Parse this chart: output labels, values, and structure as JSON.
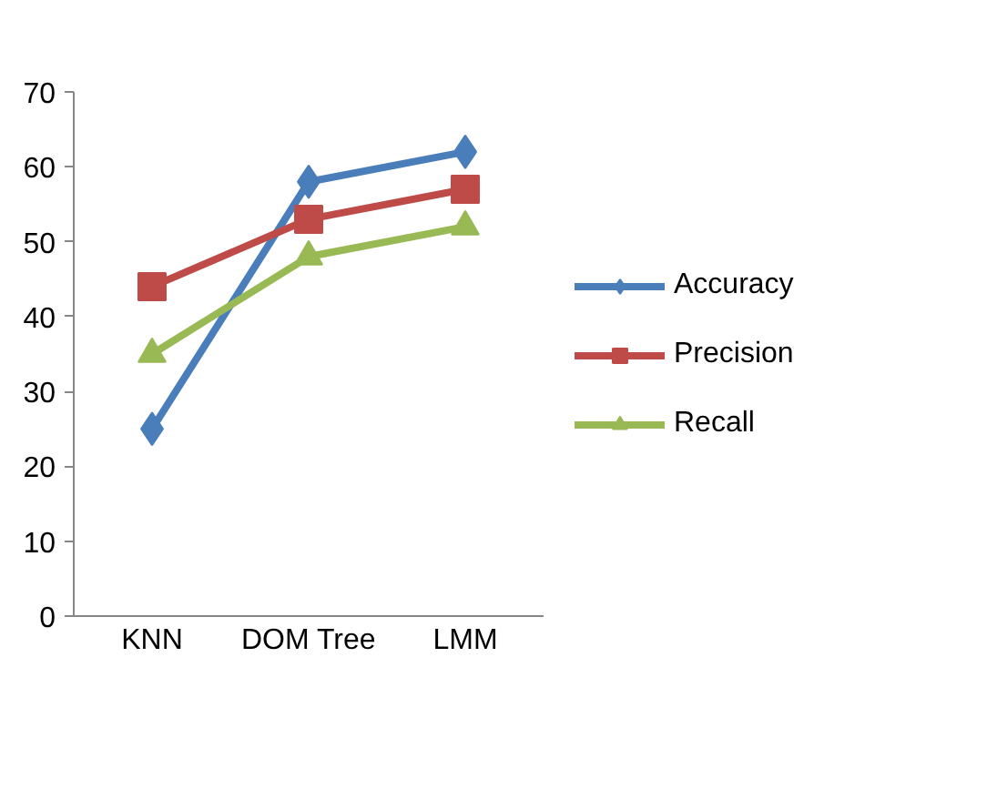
{
  "chart_data": {
    "type": "line",
    "categories": [
      "KNN",
      "DOM Tree",
      "LMM"
    ],
    "series": [
      {
        "name": "Accuracy",
        "color": "#4a7ebb",
        "marker": "diamond",
        "values": [
          25,
          58,
          62
        ]
      },
      {
        "name": "Precision",
        "color": "#be4b48",
        "marker": "square",
        "values": [
          44,
          53,
          57
        ]
      },
      {
        "name": "Recall",
        "color": "#98b954",
        "marker": "triangle",
        "values": [
          35,
          48,
          52
        ]
      }
    ],
    "ylim": [
      0,
      70
    ],
    "yticks": [
      0,
      10,
      20,
      30,
      40,
      50,
      60,
      70
    ],
    "grid": false,
    "legend": "right",
    "line_style": "solid"
  }
}
